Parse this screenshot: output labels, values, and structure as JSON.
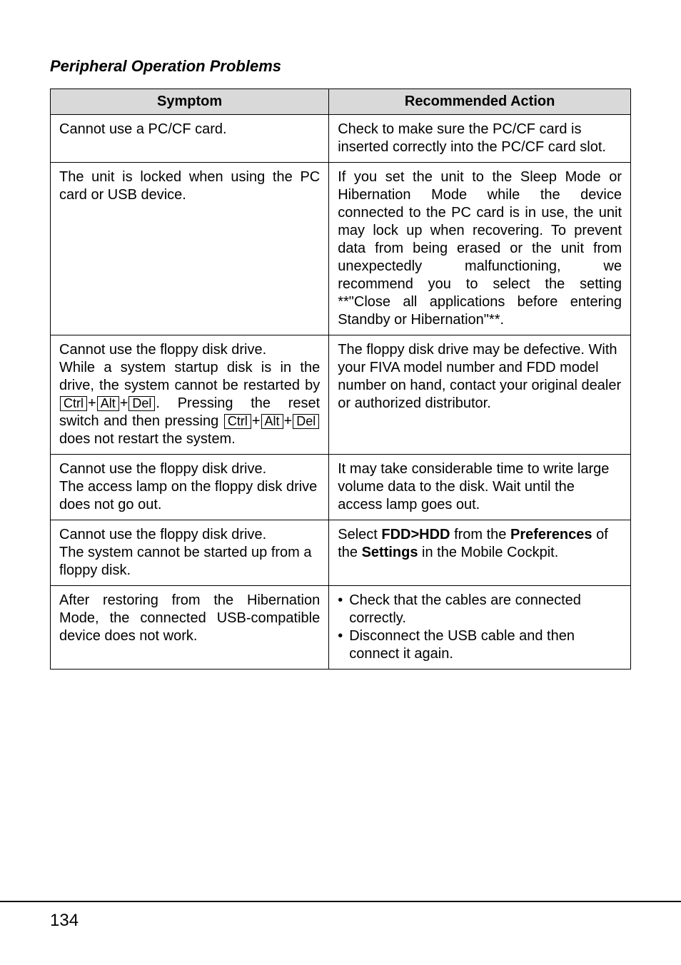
{
  "section_title": "Peripheral Operation Problems",
  "headers": {
    "symptom": "Symptom",
    "action": "Recommended Action"
  },
  "rows": {
    "r0": {
      "symptom": "Cannot use a PC/CF card.",
      "action": "Check to make sure the PC/CF card is inserted correctly into the PC/CF card slot."
    },
    "r1": {
      "symptom": "The unit is locked when using the PC card or USB device.",
      "action": "If you set the unit to the Sleep Mode or Hibernation Mode while the device connected to the PC card is in use, the unit may lock up when recovering. To prevent data from being erased or the unit from unexpectedly malfunctioning, we recommend you to select the setting **\"Close all applications before entering Standby or Hibernation\"**."
    },
    "r2": {
      "symptom_line1": "Cannot use the floppy disk drive.",
      "symptom_line2a": "While a system startup disk is in the drive, the system cannot be restarted by ",
      "symptom_line2b": ". Pressing the reset switch and then pressing ",
      "symptom_line2c": " does not restart the system.",
      "keys": {
        "ctrl": "Ctrl",
        "alt": "Alt",
        "del": "Del"
      },
      "plus": "+",
      "action": "The floppy disk drive may be defective. With your FIVA model number and FDD model number on hand, contact your original dealer or authorized distributor."
    },
    "r3": {
      "symptom": "Cannot use the floppy disk drive.\nThe access lamp on the floppy disk drive does not go out.",
      "action": "It may take considerable time to write large volume data to the disk. Wait until the access lamp goes out."
    },
    "r4": {
      "symptom": "Cannot use the floppy disk drive.\nThe system cannot be started up from a floppy disk.",
      "action_pre": "Select ",
      "action_b1": "FDD>HDD",
      "action_mid1": " from the ",
      "action_b2": "Preferences",
      "action_mid2": " of the ",
      "action_b3": "Settings",
      "action_post": " in the Mobile Cockpit."
    },
    "r5": {
      "symptom": "After restoring from the Hibernation Mode, the connected USB-compatible device does not work.",
      "action_bullets": [
        "Check that the cables are connected correctly.",
        "Disconnect the USB cable and then connect it again."
      ]
    }
  },
  "page_number": "134",
  "bullet_glyph": "•"
}
